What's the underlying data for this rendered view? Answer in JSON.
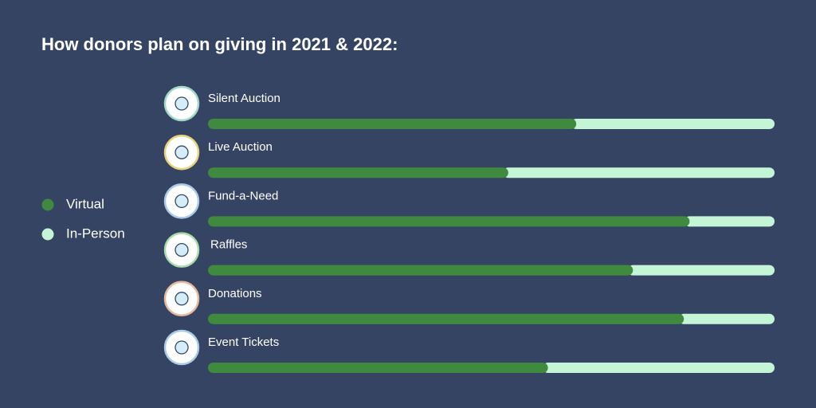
{
  "chart_data": {
    "type": "bar",
    "orientation": "horizontal",
    "stacked": true,
    "title": "How donors plan on giving in 2021 & 2022:",
    "categories": [
      "Silent Auction",
      "Live Auction",
      "Fund-a-Need",
      "Raffles",
      "Donations",
      "Event Tickets"
    ],
    "series": [
      {
        "name": "Virtual",
        "color": "#3f8a3f",
        "values": [
          65,
          53,
          85,
          75,
          84,
          60
        ]
      },
      {
        "name": "In-Person",
        "color": "#c4f5d6",
        "values": [
          35,
          47,
          15,
          25,
          16,
          40
        ]
      }
    ],
    "legend": "left"
  }
}
